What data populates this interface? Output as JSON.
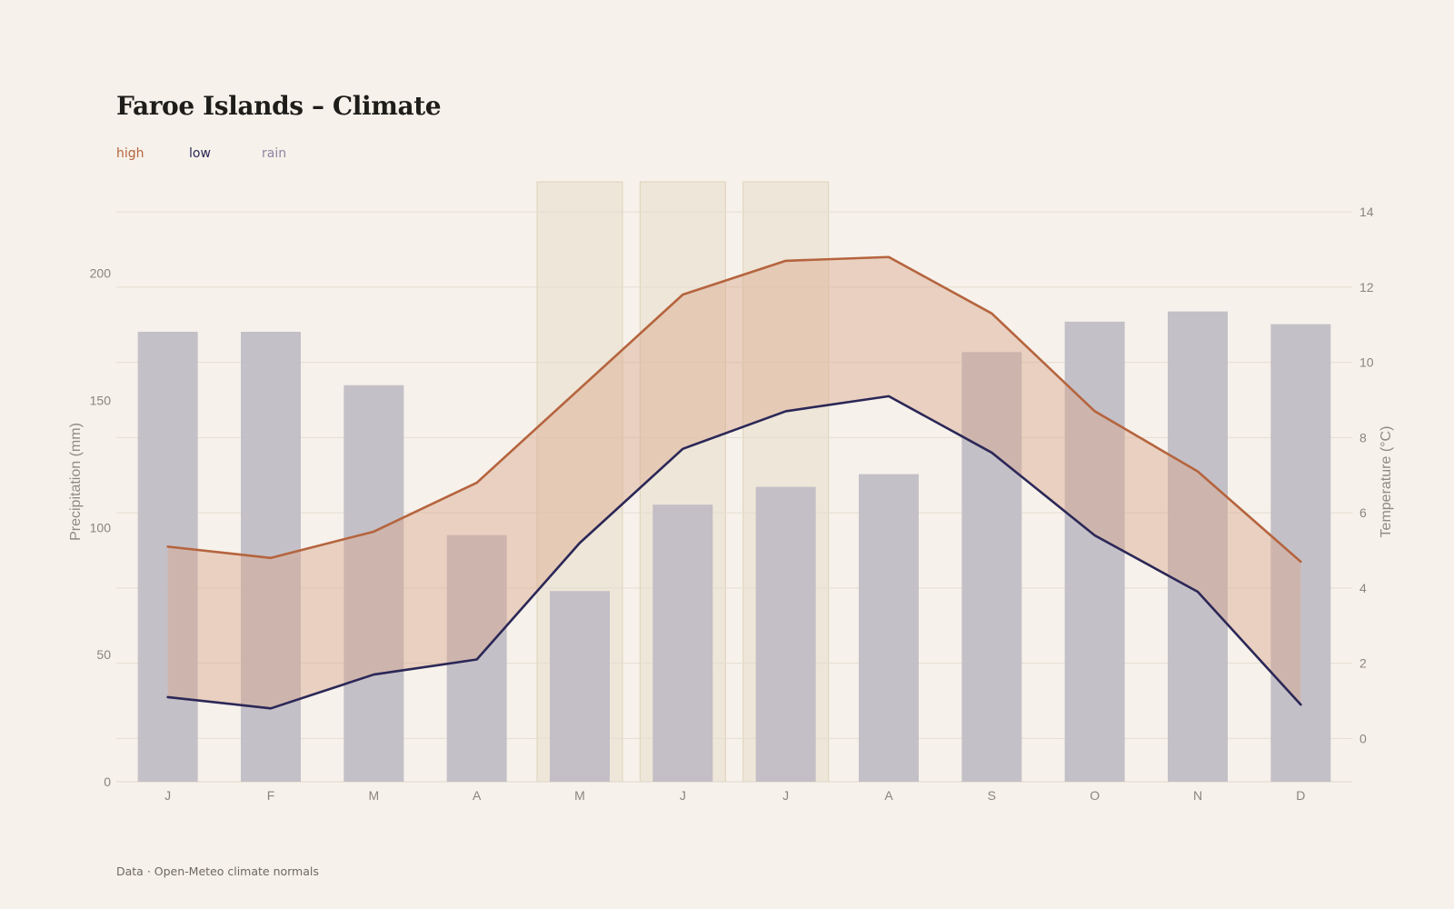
{
  "chart_data": {
    "type": "bar",
    "title": "Faroe Islands – Climate",
    "legend": {
      "placement": "top-left",
      "entries": [
        "high",
        "low",
        "rain"
      ]
    },
    "categories": [
      "J",
      "F",
      "M",
      "A",
      "M",
      "J",
      "J",
      "A",
      "S",
      "O",
      "N",
      "D"
    ],
    "series": [
      {
        "name": "rain",
        "kind": "bar",
        "axis": "left",
        "values": [
          177,
          177,
          156,
          97,
          75,
          109,
          116,
          121,
          169,
          181,
          185,
          180
        ]
      },
      {
        "name": "high",
        "kind": "line",
        "axis": "right",
        "values": [
          5.1,
          4.8,
          5.5,
          6.8,
          9.3,
          11.8,
          12.7,
          12.8,
          11.3,
          8.7,
          7.1,
          4.7
        ]
      },
      {
        "name": "low",
        "kind": "line",
        "axis": "right",
        "values": [
          1.1,
          0.8,
          1.7,
          2.1,
          5.2,
          7.7,
          8.7,
          9.1,
          7.6,
          5.4,
          3.9,
          0.9
        ]
      }
    ],
    "band": {
      "between": [
        "low",
        "high"
      ],
      "fill": "#d9a98e"
    },
    "highlight_months": [
      4,
      5,
      6
    ],
    "ylabel": "Precipitation (mm)",
    "ylim": [
      0,
      236
    ],
    "yticks": [
      0,
      50,
      100,
      150,
      200
    ],
    "y2label": "Temperature (°C)",
    "y2lim": [
      -1.15,
      14.8
    ],
    "y2ticks": [
      0,
      2,
      4,
      6,
      8,
      10,
      12,
      14
    ],
    "grid": true
  },
  "colors": {
    "high": "#b5643e",
    "low": "#2b2757",
    "rain": "#8b87a3",
    "bar_fill": "#c1bdc5",
    "highlight": "#e7dcc9"
  },
  "legend_labels": {
    "high": "high",
    "low": "low",
    "rain": "rain"
  },
  "source": "Data · Open-Meteo climate normals"
}
